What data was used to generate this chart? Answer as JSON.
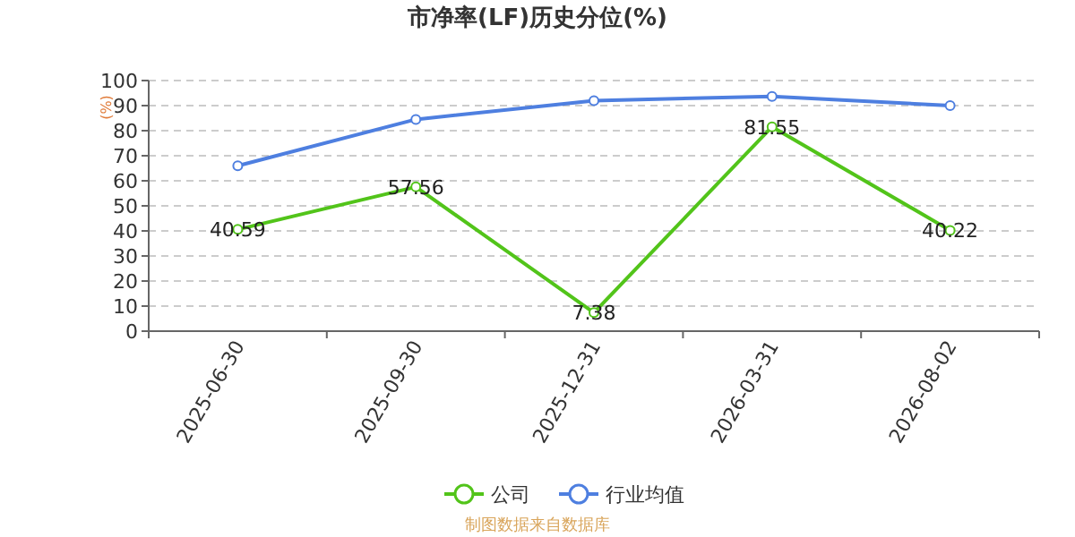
{
  "chart_data": {
    "type": "line",
    "title": "市净率(LF)历史分位(%)",
    "ylabel": "(%)",
    "categories": [
      "2025-06-30",
      "2025-09-30",
      "2025-12-31",
      "2026-03-31",
      "2026-08-02"
    ],
    "series": [
      {
        "name": "公司",
        "color": "#52c41a",
        "values": [
          40.59,
          57.56,
          7.38,
          81.55,
          40.22
        ],
        "value_labels": [
          "40.59",
          "57.56",
          "7.38",
          "81.55",
          "40.22"
        ]
      },
      {
        "name": "行业均值",
        "color": "#4e7fe0",
        "values": [
          66,
          84.5,
          92,
          93.7,
          90
        ]
      }
    ],
    "ylim": [
      0,
      100
    ],
    "yticks": [
      0,
      10,
      20,
      30,
      40,
      50,
      60,
      70,
      80,
      90,
      100
    ],
    "grid": "y",
    "legend": "bottom",
    "marker": "circle",
    "line_style": "solid",
    "annotations": [
      "制图数据来自数据库"
    ]
  }
}
